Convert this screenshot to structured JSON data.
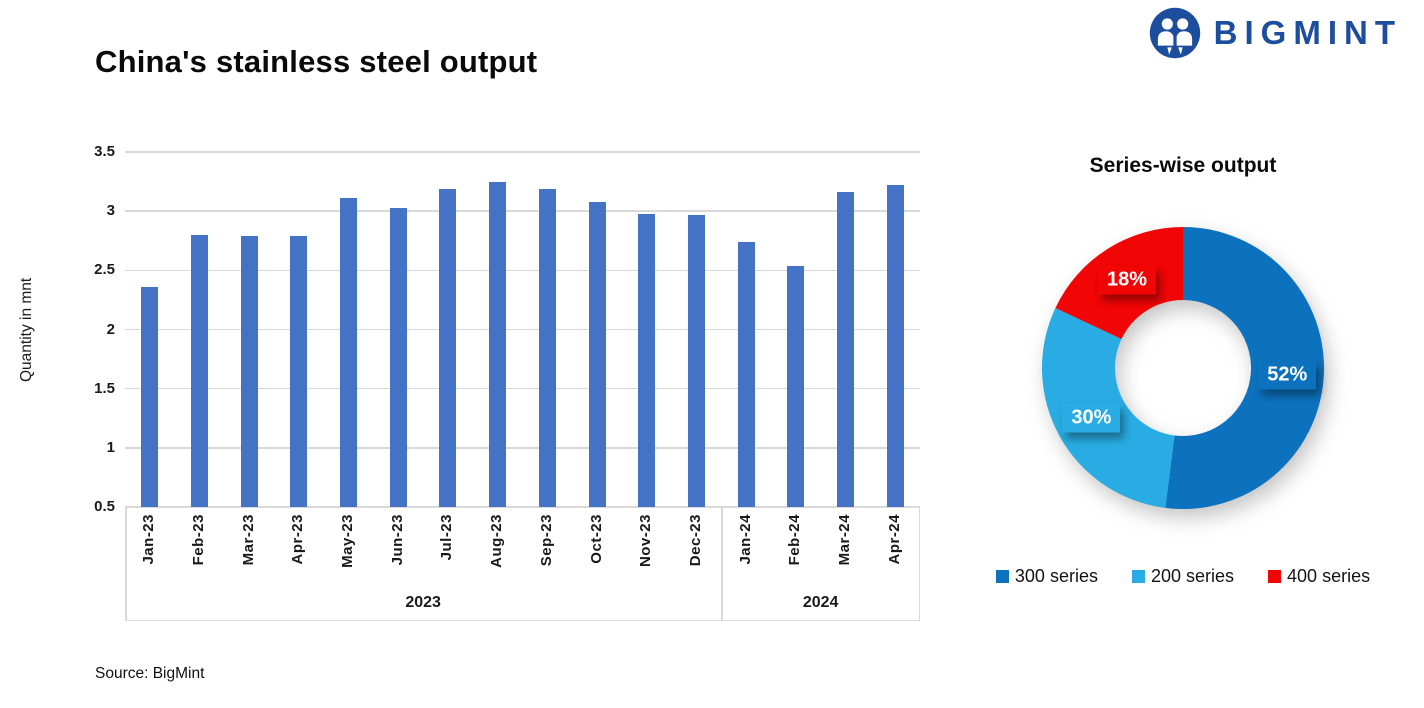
{
  "header": {
    "title": "China's stainless steel output"
  },
  "logo": {
    "text": "BIGMINT",
    "color": "#1D4E9E"
  },
  "source": {
    "text": "Source: BigMint"
  },
  "chart_data": [
    {
      "type": "bar",
      "title": "China's stainless steel output",
      "xlabel": "",
      "ylabel": "Quantity in mnt",
      "ylim": [
        0.5,
        3.5
      ],
      "yticks": [
        0.5,
        1,
        1.5,
        2,
        2.5,
        3,
        3.5
      ],
      "grid": true,
      "bar_color": "#4472C4",
      "categories": [
        "Jan-23",
        "Feb-23",
        "Mar-23",
        "Apr-23",
        "May-23",
        "Jun-23",
        "Jul-23",
        "Aug-23",
        "Sep-23",
        "Oct-23",
        "Nov-23",
        "Dec-23",
        "Jan-24",
        "Feb-24",
        "Mar-24",
        "Apr-24"
      ],
      "values": [
        2.36,
        2.8,
        2.79,
        2.79,
        3.11,
        3.03,
        3.19,
        3.25,
        3.19,
        3.08,
        2.98,
        2.97,
        2.74,
        2.54,
        3.16,
        3.22
      ],
      "year_groups": [
        {
          "label": "2023",
          "span": 12
        },
        {
          "label": "2024",
          "span": 4
        }
      ]
    },
    {
      "type": "pie",
      "title": "Series-wise output",
      "donut": true,
      "legend_position": "bottom",
      "slices": [
        {
          "label": "300 series",
          "value": 52,
          "display": "52%",
          "color": "#0D72BE"
        },
        {
          "label": "200 series",
          "value": 30,
          "display": "30%",
          "color": "#29ACE3"
        },
        {
          "label": "400 series",
          "value": 18,
          "display": "18%",
          "color": "#F20505"
        }
      ]
    }
  ]
}
